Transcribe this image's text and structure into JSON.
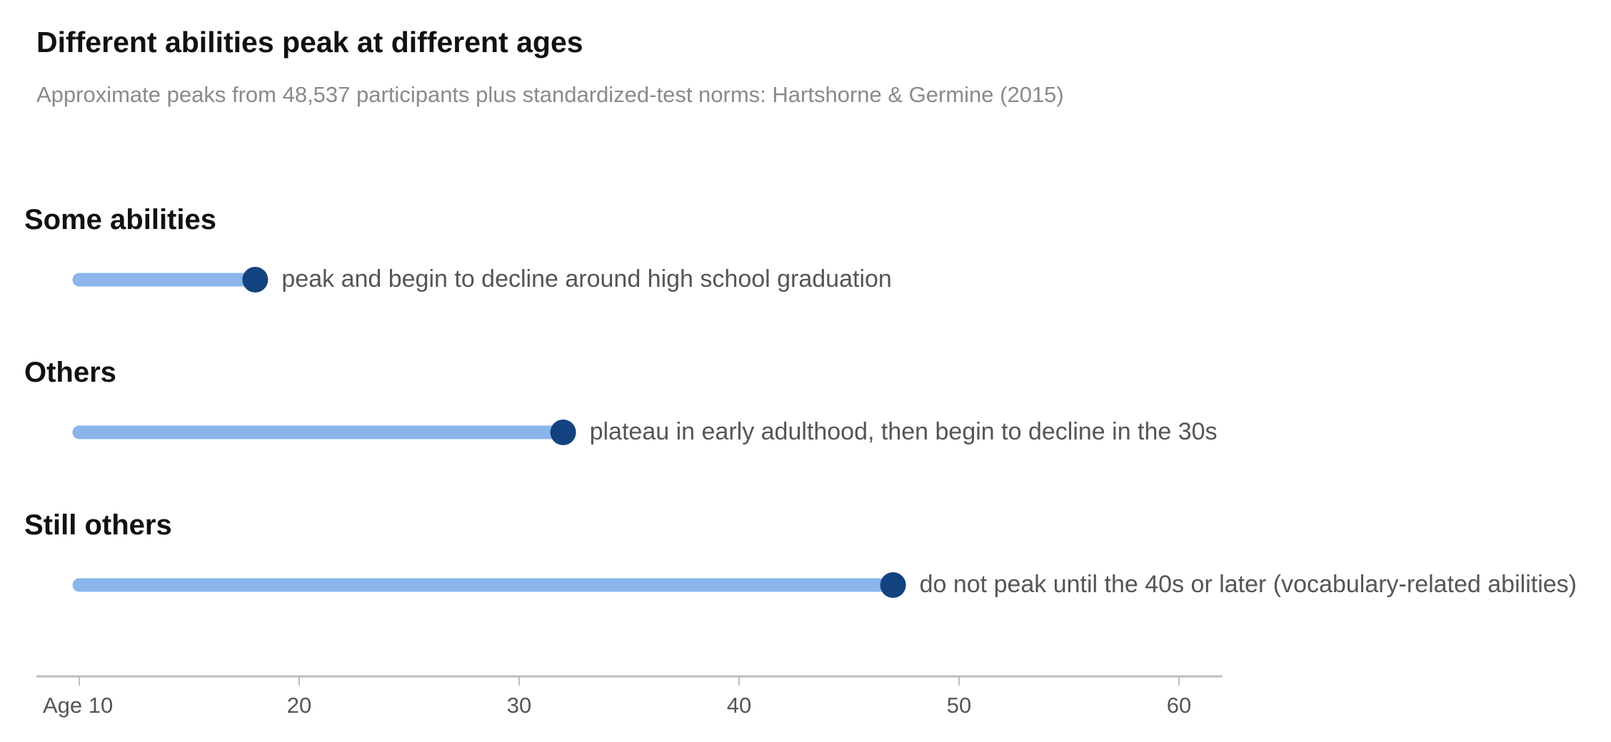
{
  "chart_data": {
    "type": "range-dot",
    "title": "Different abilities peak at different ages",
    "subtitle": "Approximate peaks from 48,537 participants plus standardized-test norms: Hartshorne & Germine (2015)",
    "xlim": [
      8,
      62
    ],
    "start": 10,
    "groups": [
      {
        "label": "Some abilities",
        "peak": 18,
        "annotation": "peak and begin to decline around high school graduation"
      },
      {
        "label": "Others",
        "peak": 32,
        "annotation": "plateau in early adulthood, then begin to decline in the 30s"
      },
      {
        "label": "Still others",
        "peak": 47,
        "annotation": "do not peak until the 40s or later (vocabulary-related abilities)"
      }
    ],
    "ticks": [
      {
        "value": 10,
        "label": "Age 10"
      },
      {
        "value": 20,
        "label": "20"
      },
      {
        "value": 30,
        "label": "30"
      },
      {
        "value": 40,
        "label": "40"
      },
      {
        "value": 50,
        "label": "50"
      },
      {
        "value": 60,
        "label": "60"
      }
    ],
    "colors": {
      "bar": "#8ab6ec",
      "dot": "#12427f",
      "axis": "#bdbdbd"
    }
  }
}
